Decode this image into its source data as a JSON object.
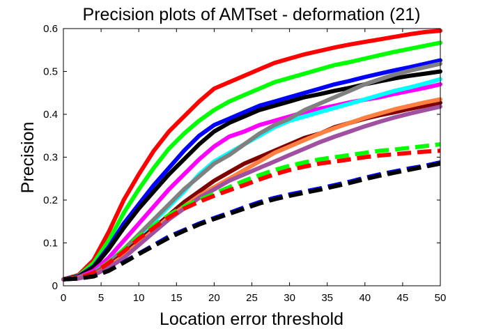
{
  "chart_data": {
    "type": "line",
    "title": "Precision plots of AMTset - deformation (21)",
    "xlabel": "Location error threshold",
    "ylabel": "Precision",
    "xlim": [
      0,
      50
    ],
    "ylim": [
      0,
      0.6
    ],
    "grid": false,
    "xticks": [
      "0",
      "5",
      "10",
      "15",
      "20",
      "25",
      "30",
      "35",
      "40",
      "45",
      "50"
    ],
    "yticks": [
      "0",
      "0.1",
      "0.2",
      "0.3",
      "0.4",
      "0.5",
      "0.6"
    ],
    "x": [
      0,
      2,
      4,
      6,
      8,
      10,
      12,
      14,
      16,
      18,
      20,
      22,
      24,
      26,
      28,
      30,
      32,
      34,
      36,
      38,
      40,
      42,
      44,
      46,
      48,
      50
    ],
    "series": [
      {
        "color": "#ff0000",
        "dash": "solid",
        "values": [
          0.015,
          0.025,
          0.06,
          0.125,
          0.2,
          0.26,
          0.315,
          0.36,
          0.395,
          0.43,
          0.46,
          0.475,
          0.49,
          0.505,
          0.52,
          0.53,
          0.54,
          0.548,
          0.556,
          0.563,
          0.569,
          0.575,
          0.581,
          0.587,
          0.592,
          0.595
        ]
      },
      {
        "color": "#00ff00",
        "dash": "solid",
        "values": [
          0.015,
          0.023,
          0.053,
          0.105,
          0.17,
          0.225,
          0.275,
          0.32,
          0.355,
          0.385,
          0.41,
          0.43,
          0.445,
          0.46,
          0.475,
          0.485,
          0.495,
          0.505,
          0.515,
          0.522,
          0.53,
          0.538,
          0.546,
          0.553,
          0.56,
          0.567
        ]
      },
      {
        "color": "#0000ff",
        "dash": "solid",
        "values": [
          0.015,
          0.022,
          0.045,
          0.09,
          0.145,
          0.19,
          0.235,
          0.275,
          0.315,
          0.35,
          0.375,
          0.39,
          0.405,
          0.42,
          0.43,
          0.44,
          0.45,
          0.46,
          0.47,
          0.478,
          0.487,
          0.495,
          0.503,
          0.51,
          0.518,
          0.526
        ]
      },
      {
        "color": "#000000",
        "dash": "solid",
        "values": [
          0.015,
          0.021,
          0.043,
          0.085,
          0.135,
          0.18,
          0.22,
          0.26,
          0.295,
          0.33,
          0.36,
          0.38,
          0.395,
          0.41,
          0.42,
          0.43,
          0.44,
          0.447,
          0.455,
          0.462,
          0.47,
          0.477,
          0.484,
          0.49,
          0.495,
          0.5
        ]
      },
      {
        "color": "#ff00ff",
        "dash": "solid",
        "values": [
          0.015,
          0.02,
          0.035,
          0.065,
          0.105,
          0.145,
          0.185,
          0.225,
          0.26,
          0.295,
          0.325,
          0.348,
          0.36,
          0.375,
          0.385,
          0.395,
          0.405,
          0.413,
          0.42,
          0.428,
          0.434,
          0.44,
          0.448,
          0.455,
          0.462,
          0.47
        ]
      },
      {
        "color": "#00ffff",
        "dash": "solid",
        "values": [
          0.015,
          0.019,
          0.03,
          0.055,
          0.085,
          0.115,
          0.15,
          0.185,
          0.22,
          0.26,
          0.29,
          0.31,
          0.33,
          0.35,
          0.37,
          0.385,
          0.395,
          0.405,
          0.415,
          0.425,
          0.435,
          0.445,
          0.455,
          0.463,
          0.472,
          0.482
        ]
      },
      {
        "color": "#808080",
        "dash": "solid",
        "values": [
          0.015,
          0.019,
          0.03,
          0.053,
          0.085,
          0.12,
          0.155,
          0.19,
          0.225,
          0.255,
          0.285,
          0.305,
          0.33,
          0.355,
          0.375,
          0.39,
          0.41,
          0.425,
          0.44,
          0.455,
          0.47,
          0.482,
          0.493,
          0.502,
          0.51,
          0.518
        ]
      },
      {
        "color": "#800000",
        "dash": "solid",
        "values": [
          0.015,
          0.018,
          0.027,
          0.047,
          0.075,
          0.105,
          0.135,
          0.165,
          0.195,
          0.22,
          0.245,
          0.265,
          0.285,
          0.3,
          0.315,
          0.33,
          0.345,
          0.355,
          0.37,
          0.38,
          0.39,
          0.398,
          0.405,
          0.413,
          0.42,
          0.427
        ]
      },
      {
        "color": "#ff8040",
        "dash": "solid",
        "values": [
          0.015,
          0.018,
          0.026,
          0.045,
          0.07,
          0.1,
          0.13,
          0.16,
          0.185,
          0.21,
          0.23,
          0.25,
          0.27,
          0.29,
          0.31,
          0.325,
          0.34,
          0.355,
          0.368,
          0.38,
          0.392,
          0.402,
          0.412,
          0.42,
          0.428,
          0.435
        ]
      },
      {
        "color": "#a050a0",
        "dash": "solid",
        "values": [
          0.015,
          0.017,
          0.025,
          0.042,
          0.065,
          0.095,
          0.125,
          0.155,
          0.18,
          0.205,
          0.225,
          0.245,
          0.26,
          0.275,
          0.29,
          0.305,
          0.32,
          0.335,
          0.348,
          0.36,
          0.372,
          0.383,
          0.393,
          0.402,
          0.41,
          0.418
        ]
      },
      {
        "color": "#00ff00",
        "dash": "dashed",
        "values": [
          0.015,
          0.018,
          0.03,
          0.055,
          0.085,
          0.115,
          0.14,
          0.165,
          0.185,
          0.2,
          0.215,
          0.23,
          0.245,
          0.258,
          0.27,
          0.28,
          0.288,
          0.295,
          0.3,
          0.305,
          0.31,
          0.315,
          0.318,
          0.322,
          0.326,
          0.33
        ]
      },
      {
        "color": "#ff0000",
        "dash": "dashed",
        "values": [
          0.015,
          0.018,
          0.03,
          0.053,
          0.08,
          0.11,
          0.135,
          0.16,
          0.18,
          0.196,
          0.21,
          0.223,
          0.235,
          0.248,
          0.26,
          0.27,
          0.278,
          0.285,
          0.29,
          0.295,
          0.3,
          0.304,
          0.307,
          0.31,
          0.313,
          0.315
        ]
      },
      {
        "color": "#0000ff",
        "dash": "dashed",
        "values": [
          0.015,
          0.017,
          0.022,
          0.035,
          0.055,
          0.075,
          0.095,
          0.115,
          0.13,
          0.145,
          0.158,
          0.17,
          0.183,
          0.195,
          0.205,
          0.213,
          0.22,
          0.227,
          0.235,
          0.243,
          0.252,
          0.26,
          0.267,
          0.274,
          0.28,
          0.288
        ]
      },
      {
        "color": "#000000",
        "dash": "dashed",
        "values": [
          0.015,
          0.017,
          0.022,
          0.035,
          0.054,
          0.074,
          0.093,
          0.112,
          0.128,
          0.143,
          0.156,
          0.168,
          0.18,
          0.192,
          0.202,
          0.21,
          0.217,
          0.224,
          0.232,
          0.24,
          0.249,
          0.257,
          0.264,
          0.271,
          0.278,
          0.285
        ]
      }
    ]
  }
}
